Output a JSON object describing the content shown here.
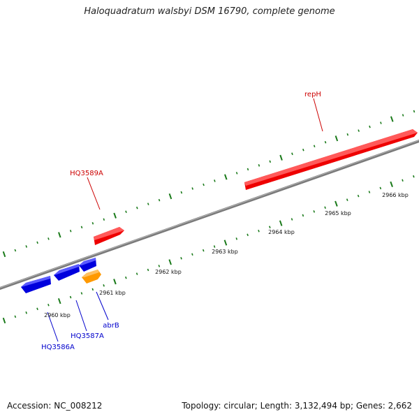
{
  "title": "Haloquadratum walsbyi DSM 16790, complete genome",
  "accession": "Accession: NC_008212",
  "topology": "Topology: circular; Length: 3,132,494 bp; Genes: 2,662",
  "colors": {
    "backbone": "#808080",
    "tick": "#1a7a1a",
    "forward_gene": "#ff0000",
    "reverse_gene": "#0000ff",
    "reverse_gene_alt": "#ff9900",
    "forward_label": "#cc0000",
    "reverse_label": "#0000cc"
  },
  "scale_labels": [
    "2960 kbp",
    "2961 kbp",
    "2962 kbp",
    "2963 kbp",
    "2964 kbp",
    "2965 kbp",
    "2966 kbp"
  ],
  "gene_labels": {
    "repH": "repH",
    "HQ3589A": "HQ3589A",
    "abrB": "abrB",
    "HQ3587A": "HQ3587A",
    "HQ3586A": "HQ3586A"
  }
}
